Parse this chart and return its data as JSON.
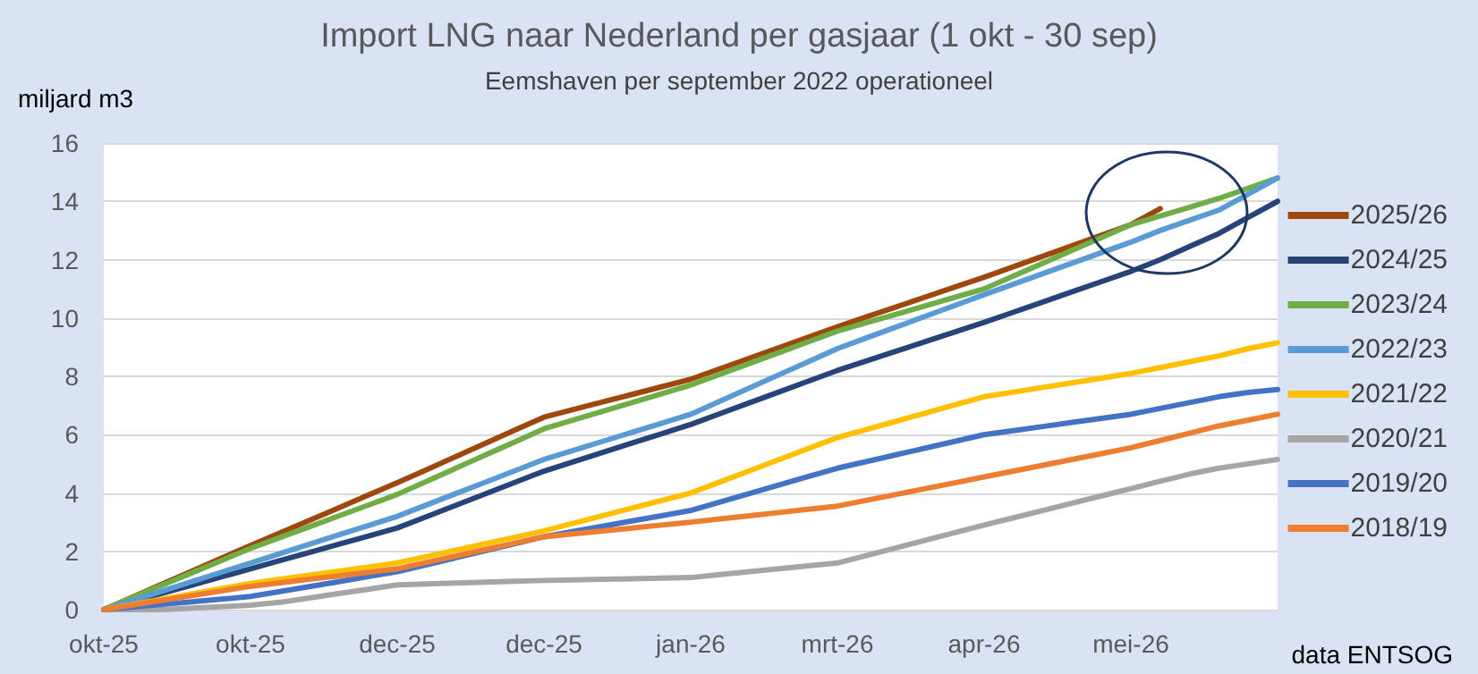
{
  "chart_data": {
    "type": "line",
    "title": "Import LNG naar Nederland per gasjaar (1 okt - 30 sep)",
    "subtitle": "Eemshaven per september 2022 operationeel",
    "ylabel": "miljard m3",
    "annotations": [
      "data ENTSOG"
    ],
    "categories": [
      "okt-25",
      null,
      null,
      null,
      null,
      "okt-25",
      null,
      null,
      null,
      null,
      "dec-25",
      null,
      null,
      null,
      null,
      "dec-25",
      null,
      null,
      null,
      null,
      "jan-26",
      null,
      null,
      null,
      null,
      "mrt-26",
      null,
      null,
      null,
      null,
      "apr-26",
      null,
      null,
      null,
      null,
      "mei-26",
      null,
      null,
      null,
      null,
      null
    ],
    "ylim": [
      0,
      16
    ],
    "yticks": [
      0,
      2,
      4,
      6,
      8,
      10,
      12,
      14,
      16
    ],
    "grid": "y",
    "legend": "right",
    "marker": "none",
    "line_style": "solid",
    "series": [
      {
        "name": "2025/26",
        "color": "#9e480e",
        "values": [
          0,
          0.44,
          0.88,
          1.32,
          1.76,
          2.2,
          2.63,
          3.06,
          3.49,
          3.92,
          4.35,
          4.8,
          5.25,
          5.7,
          6.15,
          6.6,
          6.86,
          7.12,
          7.38,
          7.64,
          7.9,
          8.26,
          8.62,
          8.98,
          9.34,
          9.7,
          10.04,
          10.38,
          10.72,
          11.06,
          11.4,
          11.76,
          12.12,
          12.48,
          12.84,
          13.2,
          13.75,
          null,
          null,
          null,
          null
        ]
      },
      {
        "name": "2024/25",
        "color": "#264478",
        "values": [
          0,
          0.28,
          0.56,
          0.84,
          1.12,
          1.4,
          1.68,
          1.96,
          2.24,
          2.52,
          2.8,
          3.19,
          3.58,
          3.97,
          4.36,
          4.75,
          5.07,
          5.39,
          5.71,
          6.03,
          6.35,
          6.72,
          7.09,
          7.46,
          7.83,
          8.2,
          8.53,
          8.86,
          9.19,
          9.52,
          9.85,
          10.2,
          10.55,
          10.9,
          11.25,
          11.6,
          12.0,
          12.45,
          12.9,
          13.45,
          14.0
        ]
      },
      {
        "name": "2023/24",
        "color": "#70ad47",
        "values": [
          0,
          0.42,
          0.84,
          1.26,
          1.68,
          2.1,
          2.47,
          2.84,
          3.21,
          3.58,
          3.95,
          4.4,
          4.85,
          5.3,
          5.75,
          6.2,
          6.5,
          6.8,
          7.1,
          7.4,
          7.7,
          8.07,
          8.44,
          8.81,
          9.18,
          9.55,
          9.84,
          10.13,
          10.42,
          10.71,
          11.0,
          11.44,
          11.88,
          12.32,
          12.76,
          13.2,
          13.5,
          13.8,
          14.1,
          14.45,
          14.8
        ]
      },
      {
        "name": "2022/23",
        "color": "#5b9bd5",
        "values": [
          0,
          0.32,
          0.64,
          0.96,
          1.28,
          1.6,
          1.92,
          2.24,
          2.56,
          2.88,
          3.2,
          3.59,
          3.98,
          4.37,
          4.76,
          5.15,
          5.46,
          5.77,
          6.08,
          6.39,
          6.7,
          7.15,
          7.6,
          8.05,
          8.5,
          8.95,
          9.32,
          9.69,
          10.06,
          10.43,
          10.8,
          11.16,
          11.52,
          11.88,
          12.24,
          12.6,
          13.0,
          13.35,
          13.7,
          14.25,
          14.8
        ]
      },
      {
        "name": "2021/22",
        "color": "#ffc000",
        "values": [
          0,
          0.18,
          0.36,
          0.54,
          0.72,
          0.9,
          1.04,
          1.18,
          1.32,
          1.46,
          1.6,
          1.82,
          2.04,
          2.26,
          2.48,
          2.7,
          2.96,
          3.22,
          3.48,
          3.74,
          4.0,
          4.38,
          4.76,
          5.14,
          5.52,
          5.9,
          6.18,
          6.46,
          6.74,
          7.02,
          7.3,
          7.46,
          7.62,
          7.78,
          7.94,
          8.1,
          8.3,
          8.5,
          8.7,
          8.95,
          9.15
        ]
      },
      {
        "name": "2020/21",
        "color": "#a5a5a5",
        "values": [
          0,
          0,
          0,
          0.05,
          0.1,
          0.15,
          0.25,
          0.4,
          0.55,
          0.7,
          0.85,
          0.88,
          0.91,
          0.94,
          0.97,
          1.0,
          1.02,
          1.04,
          1.06,
          1.08,
          1.1,
          1.2,
          1.3,
          1.4,
          1.5,
          1.6,
          1.86,
          2.12,
          2.38,
          2.64,
          2.9,
          3.15,
          3.4,
          3.65,
          3.9,
          4.15,
          4.4,
          4.65,
          4.85,
          5.0,
          5.15
        ]
      },
      {
        "name": "2019/20",
        "color": "#4472c4",
        "values": [
          0,
          0.09,
          0.18,
          0.27,
          0.36,
          0.45,
          0.62,
          0.79,
          0.96,
          1.13,
          1.3,
          1.54,
          1.78,
          2.02,
          2.26,
          2.5,
          2.68,
          2.86,
          3.04,
          3.22,
          3.4,
          3.69,
          3.98,
          4.27,
          4.56,
          4.85,
          5.08,
          5.31,
          5.54,
          5.77,
          6.0,
          6.14,
          6.28,
          6.42,
          6.56,
          6.7,
          6.9,
          7.1,
          7.3,
          7.45,
          7.55
        ]
      },
      {
        "name": "2018/19",
        "color": "#ed7d31",
        "values": [
          0,
          0.16,
          0.32,
          0.48,
          0.64,
          0.8,
          0.92,
          1.04,
          1.16,
          1.28,
          1.4,
          1.62,
          1.84,
          2.06,
          2.28,
          2.5,
          2.6,
          2.7,
          2.8,
          2.9,
          3.0,
          3.11,
          3.22,
          3.33,
          3.44,
          3.55,
          3.75,
          3.95,
          4.15,
          4.35,
          4.55,
          4.75,
          4.95,
          5.15,
          5.35,
          5.55,
          5.8,
          6.05,
          6.3,
          6.5,
          6.7
        ]
      }
    ]
  }
}
